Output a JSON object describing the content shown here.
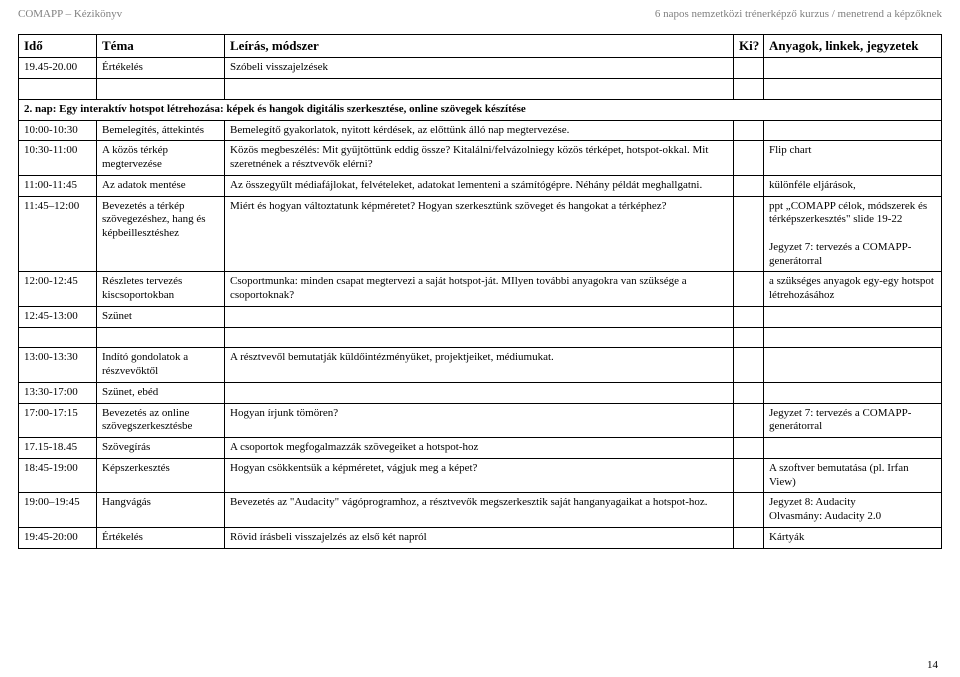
{
  "header": {
    "left": "COMAPP – Kézikönyv",
    "right": "6 napos nemzetközi trénerképző kurzus / menetrend a képzőknek"
  },
  "columns": {
    "time": "Idő",
    "tema": "Téma",
    "desc": "Leírás, módszer",
    "ki": "Ki?",
    "mat": "Anyagok, linkek, jegyzetek"
  },
  "rows": [
    {
      "time": "19.45-20.00",
      "tema": "Értékelés",
      "desc": "Szóbeli visszajelzések",
      "ki": "",
      "mat": ""
    }
  ],
  "section2": {
    "title": "2. nap: Egy interaktív hotspot létrehozása: képek és hangok digitális szerkesztése, online szövegek készítése"
  },
  "rows2": [
    {
      "time": "10:00-10:30",
      "tema": "Bemelegítés, áttekintés",
      "desc": "Bemelegítő gyakorlatok, nyitott kérdések, az előttünk álló nap megtervezése.",
      "ki": "",
      "mat": ""
    },
    {
      "time": "10:30-11:00",
      "tema": "A közös térkép megtervezése",
      "desc": "Közös megbeszélés: Mit gyűjtöttünk eddig össze? Kitalálni/felvázolniegy közös térképet, hotspot-okkal. Mit szeretnének a résztvevők elérni?",
      "ki": "",
      "mat": "Flip chart"
    },
    {
      "time": "11:00-11:45",
      "tema": "Az adatok mentése",
      "desc": "Az összegyűlt médiafájlokat, felvételeket, adatokat lementeni a számítógépre. Néhány példát meghallgatni.",
      "ki": "",
      "mat": "különféle eljárások,"
    },
    {
      "time": "11:45–12:00",
      "tema": "Bevezetés a térkép szövegezéshez, hang és képbeillesztéshez",
      "desc": "Miért és hogyan változtatunk képméretet? Hogyan szerkesztünk szöveget és hangokat a térképhez?",
      "ki": "",
      "mat": "ppt „COMAPP célok, módszerek és térképszerkesztés\" slide 19-22\n\nJegyzet 7: tervezés a  COMAPP-generátorral"
    },
    {
      "time": "12:00-12:45",
      "tema": "Részletes tervezés kiscsoportokban",
      "desc": "Csoportmunka: minden csapat megtervezi a saját hotspot-ját. MIlyen további anyagokra van szüksége a csoportoknak?",
      "ki": "",
      "mat": "a szükséges anyagok egy-egy hotspot létrehozásához"
    },
    {
      "time": "12:45-13:00",
      "tema": "Szünet",
      "desc": "",
      "ki": "",
      "mat": ""
    }
  ],
  "rows3": [
    {
      "time": "13:00-13:30",
      "tema": "Indító gondolatok a részvevőktől",
      "desc": "A résztvevől bemutatják küldőintézményüket, projektjeiket, médiumukat.",
      "ki": "",
      "mat": ""
    },
    {
      "time": "13:30-17:00",
      "tema": "Szünet, ebéd",
      "desc": "",
      "ki": "",
      "mat": ""
    },
    {
      "time": "17:00-17:15",
      "tema": "Bevezetés az online szövegszerkesztésbe",
      "desc": "Hogyan írjunk tömören?",
      "ki": "",
      "mat": "Jegyzet 7: tervezés a  COMAPP-generátorral"
    },
    {
      "time": "17.15-18.45",
      "tema": "Szövegírás",
      "desc": "A csoportok megfogalmazzák szövegeiket a hotspot-hoz",
      "ki": "",
      "mat": ""
    },
    {
      "time": "18:45-19:00",
      "tema": "Képszerkesztés",
      "desc": "Hogyan csökkentsük a képméretet, vágjuk meg a képet?",
      "ki": "",
      "mat": "A szoftver bemutatása (pl.  Irfan View)"
    },
    {
      "time": "19:00–19:45",
      "tema": "Hangvágás",
      "desc": "Bevezetés az \"Audacity\" vágóprogramhoz,  a résztvevők megszerkesztik saját hanganyagaikat a hotspot-hoz.",
      "ki": "",
      "mat": "Jegyzet 8: Audacity\nOlvasmány: Audacity 2.0"
    },
    {
      "time": "19:45-20:00",
      "tema": "Értékelés",
      "desc": "Rövid írásbeli visszajelzés az első két napról",
      "ki": "",
      "mat": "Kártyák"
    }
  ],
  "pagenum": "14"
}
